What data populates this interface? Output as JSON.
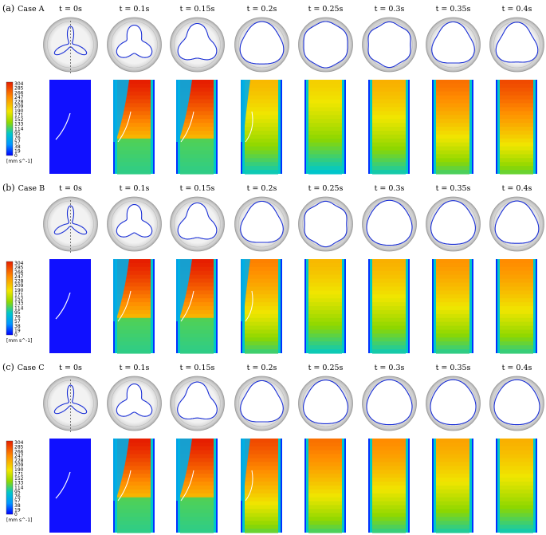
{
  "colors": {
    "valve_outline": "#1a2fd6",
    "flow_min": "#1a1aff",
    "flow_max": "#ff2200"
  },
  "colorbar": {
    "ticks": [
      "304",
      "285",
      "266",
      "247",
      "228",
      "209",
      "190",
      "171",
      "152",
      "133",
      "114",
      "95",
      "76",
      "57",
      "38",
      "19",
      "0"
    ],
    "unit": "[mm s^-1]"
  },
  "cases": [
    {
      "label": "(a)",
      "name": "Case A",
      "times": [
        "t = 0s",
        "t = 0.1s",
        "t = 0.15s",
        "t = 0.2s",
        "t = 0.25s",
        "t = 0.3s",
        "t = 0.35s",
        "t = 0.4s"
      ],
      "opening": [
        0.0,
        0.25,
        0.5,
        0.8,
        1.0,
        0.95,
        0.75,
        0.7
      ],
      "intensity": [
        0.0,
        1.0,
        1.0,
        0.7,
        0.65,
        0.72,
        0.85,
        0.92
      ]
    },
    {
      "label": "(b)",
      "name": "Case B",
      "times": [
        "t = 0s",
        "t = 0.1s",
        "t = 0.15s",
        "t = 0.2s",
        "t = 0.25s",
        "t = 0.3s",
        "t = 0.35s",
        "t = 0.4s"
      ],
      "opening": [
        0.0,
        0.25,
        0.5,
        0.75,
        0.95,
        0.9,
        0.85,
        0.8
      ],
      "intensity": [
        0.0,
        1.0,
        1.0,
        0.82,
        0.7,
        0.72,
        0.78,
        0.8
      ]
    },
    {
      "label": "(c)",
      "name": "Case C",
      "times": [
        "t = 0s",
        "t = 0.1s",
        "t = 0.15s",
        "t = 0.2s",
        "t = 0.25s",
        "t = 0.3s",
        "t = 0.35s",
        "t = 0.4s"
      ],
      "opening": [
        0.0,
        0.25,
        0.55,
        0.75,
        0.85,
        0.9,
        0.9,
        0.9
      ],
      "intensity": [
        0.0,
        1.0,
        1.0,
        0.92,
        0.85,
        0.8,
        0.75,
        0.72
      ]
    }
  ]
}
